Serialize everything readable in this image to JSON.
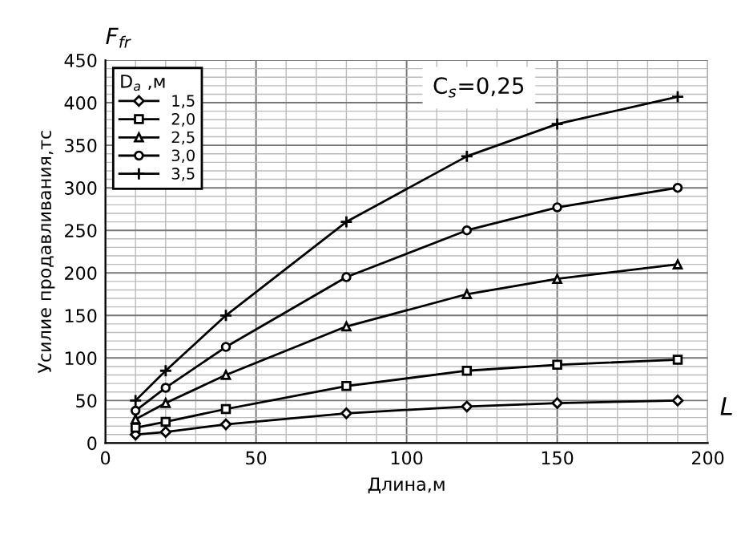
{
  "chart_data": {
    "type": "line",
    "xlabel": "Длина,м",
    "ylabel": "Усилие продавливания,тс",
    "legend_title": "D$_{a}$ ,м",
    "annotations": [
      "C$_{s}$=0,25",
      "F$_{fr}$",
      "L"
    ],
    "x": [
      10,
      20,
      40,
      80,
      120,
      150,
      190
    ],
    "series": [
      {
        "name": "1,5",
        "color": "#000000",
        "marker": "diamond",
        "values": [
          10,
          13,
          22,
          35,
          43,
          47,
          50
        ]
      },
      {
        "name": "2,0",
        "color": "#000000",
        "marker": "square",
        "values": [
          18,
          25,
          40,
          67,
          85,
          92,
          98
        ]
      },
      {
        "name": "2,5",
        "color": "#000000",
        "marker": "triangle",
        "values": [
          28,
          47,
          80,
          137,
          175,
          193,
          210
        ]
      },
      {
        "name": "3,0",
        "color": "#000000",
        "marker": "circle",
        "values": [
          38,
          65,
          113,
          195,
          250,
          277,
          300
        ]
      },
      {
        "name": "3,5",
        "color": "#000000",
        "marker": "cross",
        "values": [
          50,
          85,
          150,
          260,
          337,
          375,
          407
        ]
      }
    ],
    "xlim": [
      0,
      200
    ],
    "xticks": [
      0,
      50,
      100,
      150,
      200
    ],
    "ylim": [
      0,
      450
    ],
    "yticks": [
      0,
      50,
      100,
      150,
      200,
      250,
      300,
      350,
      400,
      450
    ],
    "grid": true,
    "legend": "top left",
    "line_style": "solid"
  }
}
